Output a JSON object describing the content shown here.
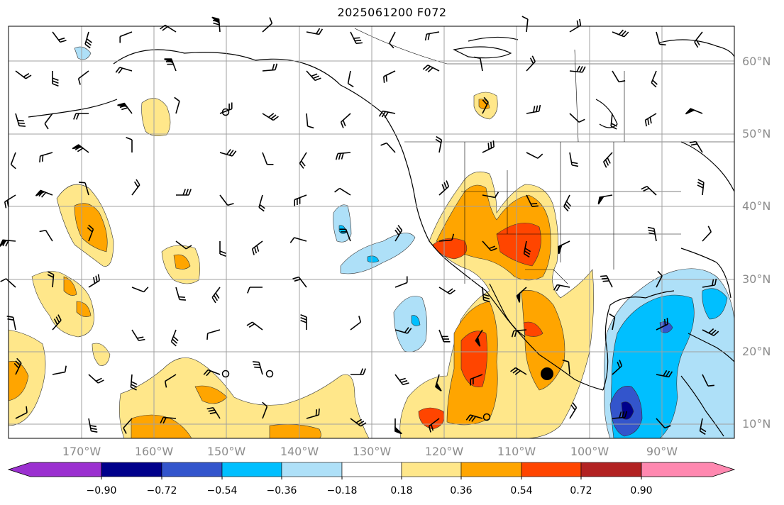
{
  "title": "2025061200 F072",
  "lat_labels": [
    "60°N",
    "50°N",
    "40°N",
    "30°N",
    "20°N",
    "10°N"
  ],
  "lon_labels": [
    "170°W",
    "160°W",
    "150°W",
    "140°W",
    "130°W",
    "120°W",
    "110°W",
    "100°W",
    "90°W"
  ],
  "colorbar": {
    "ticks": [
      "−0.90",
      "−0.72",
      "−0.54",
      "−0.36",
      "−0.18",
      "0.18",
      "0.36",
      "0.54",
      "0.72",
      "0.90"
    ],
    "colors": [
      "#9b30d0",
      "#00008b",
      "#3355cc",
      "#00bfff",
      "#aee0f8",
      "#ffffff",
      "#ffe78a",
      "#ffa500",
      "#ff4500",
      "#b22222",
      "#ff88b0"
    ]
  },
  "palette": {
    "neg_light": "#aee0f8",
    "neg_mid": "#00bfff",
    "neg_strong": "#3355cc",
    "neg_darkest": "#00008b",
    "pos_light": "#ffe78a",
    "pos_mid": "#ffa500",
    "pos_strong": "#ff4500"
  },
  "marker": "filled-circle"
}
